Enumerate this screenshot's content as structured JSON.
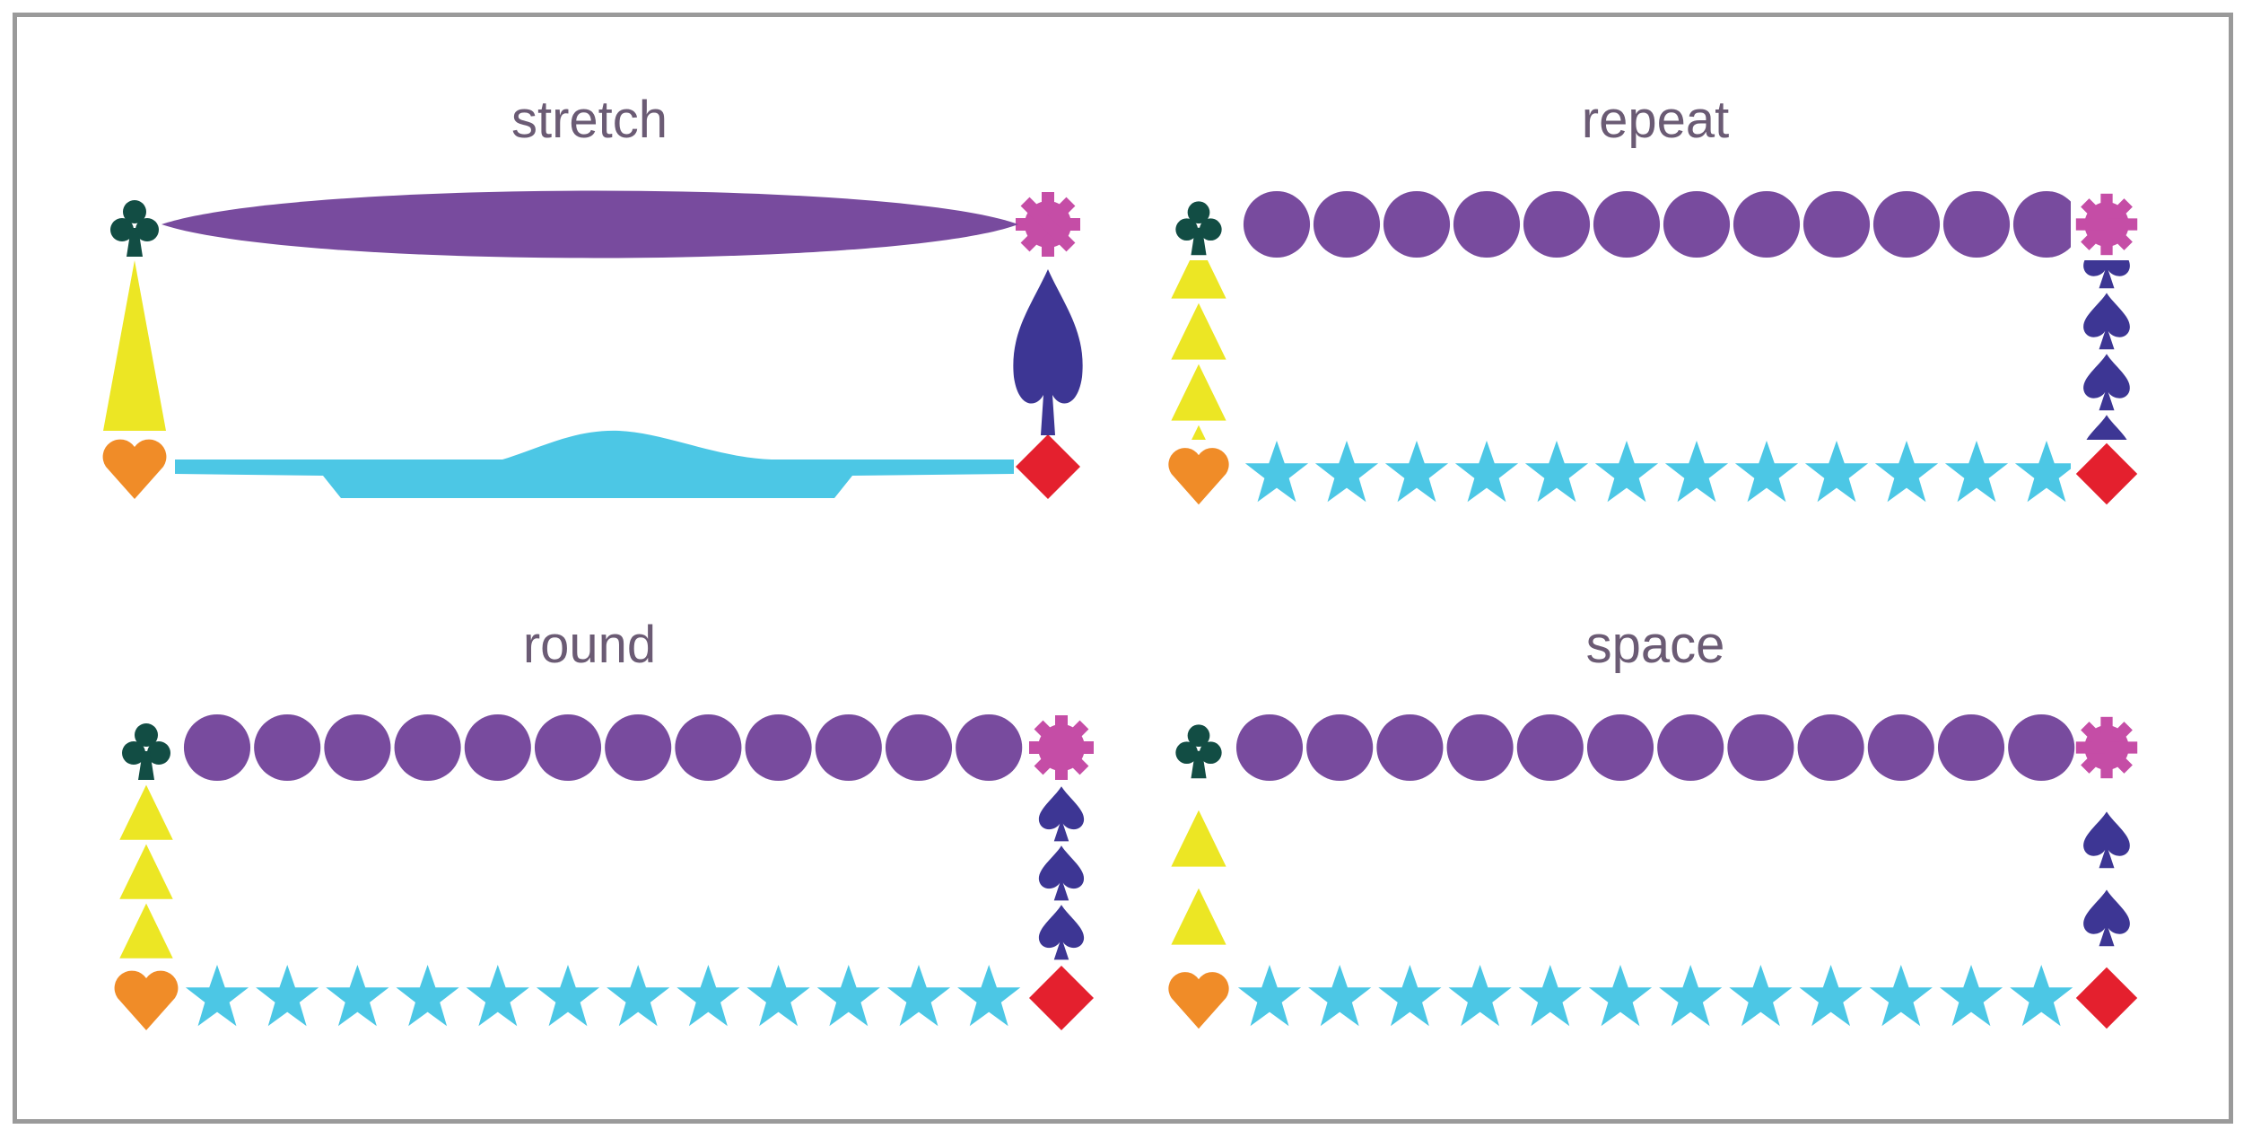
{
  "panels": [
    {
      "label": "stretch"
    },
    {
      "label": "repeat"
    },
    {
      "label": "round"
    },
    {
      "label": "space"
    }
  ],
  "colors": {
    "top": "#784b9e",
    "left": "#ece624",
    "right": "#3d3694",
    "bottom": "#4cc7e5",
    "corner_tl": "#124d44",
    "corner_tr": "#c54da6",
    "corner_bl": "#f08c28",
    "corner_br": "#e4202e"
  },
  "icons": {
    "top": "circle-icon",
    "left": "triangle-icon",
    "right": "spade-icon",
    "bottom": "star-icon",
    "corner_tl": "club-icon",
    "corner_tr": "gear-icon",
    "corner_bl": "heart-icon",
    "corner_br": "diamond-icon"
  }
}
